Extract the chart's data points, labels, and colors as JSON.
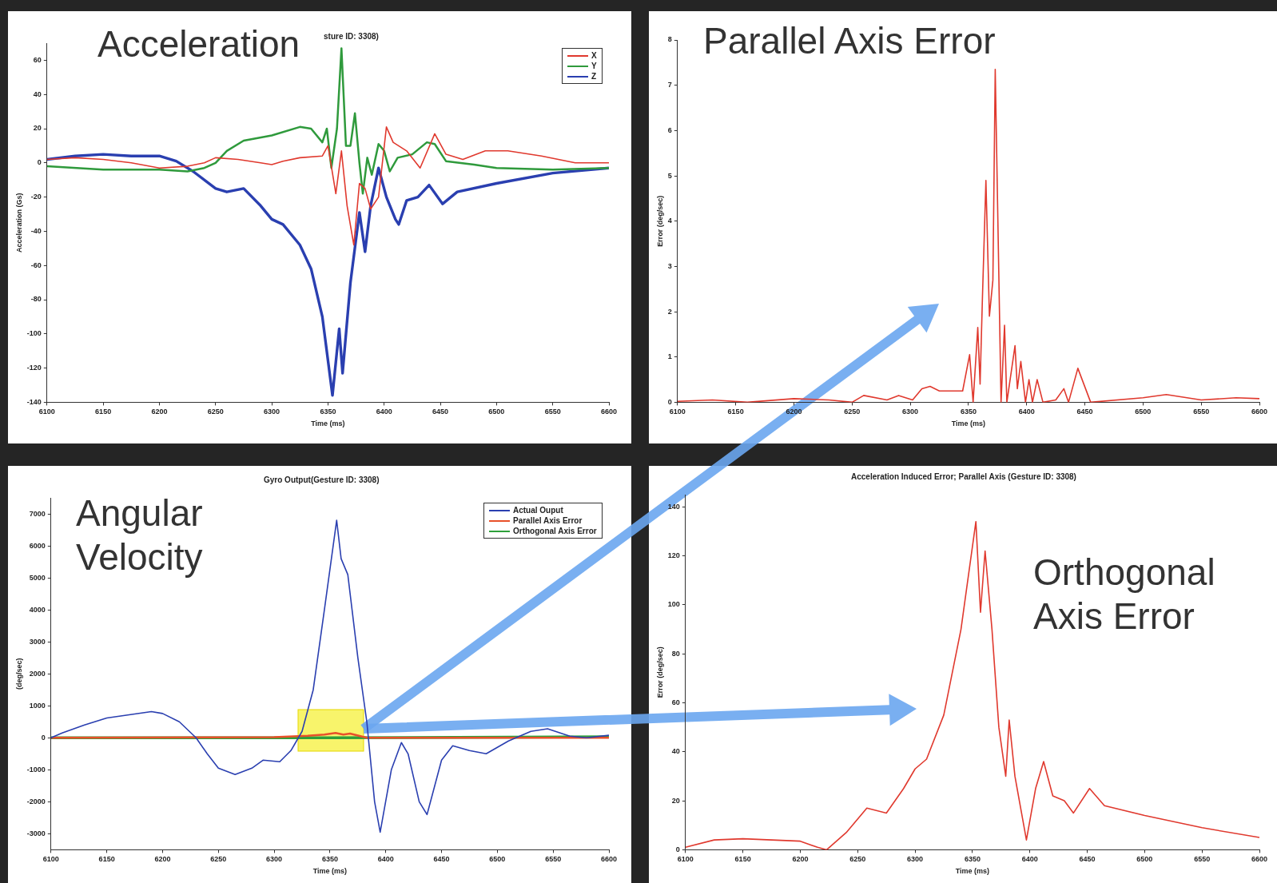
{
  "chart_data": [
    {
      "type": "line",
      "title": "Acceleration",
      "subtitle": "sture ID: 3308)",
      "xlabel": "Time (ms)",
      "ylabel": "Acceleration (Gs)",
      "xlim": [
        6100,
        6600
      ],
      "xticks": [
        6100,
        6150,
        6200,
        6250,
        6300,
        6350,
        6400,
        6450,
        6500,
        6550,
        6600
      ],
      "ylim": [
        -140,
        70
      ],
      "yticks": [
        -140,
        -120,
        -100,
        -80,
        -60,
        -40,
        -20,
        0,
        20,
        40,
        60
      ],
      "grid": false,
      "legend": "top right",
      "marker": "none",
      "line_style": "solid",
      "series": [
        {
          "name": "X",
          "color": "#e0392e",
          "x": [
            6100,
            6125,
            6150,
            6175,
            6200,
            6225,
            6240,
            6250,
            6270,
            6290,
            6300,
            6310,
            6325,
            6345,
            6350,
            6357,
            6362,
            6367,
            6373,
            6378,
            6383,
            6388,
            6395,
            6402,
            6408,
            6420,
            6432,
            6445,
            6455,
            6470,
            6490,
            6510,
            6540,
            6570,
            6600
          ],
          "values": [
            2,
            3,
            2,
            0,
            -3,
            -2,
            0,
            3,
            2,
            0,
            -1,
            1,
            3,
            4,
            10,
            -18,
            7,
            -25,
            -48,
            -12,
            -15,
            -27,
            -20,
            21,
            12,
            7,
            -3,
            17,
            5,
            2,
            7,
            7,
            4,
            0,
            0
          ]
        },
        {
          "name": "Y",
          "color": "#2f9a3c",
          "x": [
            6100,
            6150,
            6200,
            6225,
            6240,
            6250,
            6260,
            6275,
            6300,
            6325,
            6335,
            6345,
            6349,
            6353,
            6358,
            6362,
            6366,
            6370,
            6374,
            6378,
            6381,
            6385,
            6389,
            6395,
            6400,
            6405,
            6412,
            6425,
            6438,
            6445,
            6455,
            6480,
            6500,
            6550,
            6600
          ],
          "values": [
            -2,
            -4,
            -4,
            -5,
            -3,
            0,
            7,
            13,
            16,
            21,
            20,
            12,
            20,
            -3,
            20,
            67,
            10,
            10,
            29,
            0,
            -18,
            3,
            -7,
            11,
            7,
            -5,
            3,
            5,
            12,
            11,
            1,
            -1,
            -3,
            -4,
            -3
          ]
        },
        {
          "name": "Z",
          "color": "#2a3fb0",
          "x": [
            6100,
            6125,
            6150,
            6175,
            6200,
            6215,
            6230,
            6250,
            6260,
            6275,
            6290,
            6300,
            6310,
            6325,
            6335,
            6345,
            6354,
            6360,
            6363,
            6370,
            6378,
            6383,
            6388,
            6395,
            6402,
            6410,
            6413,
            6420,
            6430,
            6440,
            6452,
            6465,
            6500,
            6550,
            6600
          ],
          "values": [
            2,
            4,
            5,
            4,
            4,
            1,
            -5,
            -15,
            -17,
            -15,
            -25,
            -33,
            -36,
            -48,
            -62,
            -90,
            -136,
            -97,
            -123,
            -70,
            -29,
            -52,
            -25,
            -3,
            -20,
            -33,
            -36,
            -22,
            -20,
            -13,
            -24,
            -17,
            -12,
            -6,
            -3
          ]
        }
      ]
    },
    {
      "type": "line",
      "title": "Parallel Axis Error",
      "xlabel": "Time (ms)",
      "ylabel": "Error (deg/sec)",
      "xlim": [
        6100,
        6600
      ],
      "xticks": [
        6100,
        6150,
        6200,
        6250,
        6300,
        6350,
        6400,
        6450,
        6500,
        6550,
        6600
      ],
      "ylim": [
        0,
        8
      ],
      "yticks": [
        0,
        1,
        2,
        3,
        4,
        5,
        6,
        7,
        8
      ],
      "grid": false,
      "marker": "none",
      "line_style": "solid",
      "series": [
        {
          "color": "#e0392e",
          "x": [
            6100,
            6130,
            6160,
            6200,
            6230,
            6250,
            6260,
            6280,
            6290,
            6302,
            6310,
            6317,
            6325,
            6345,
            6351,
            6354,
            6358,
            6360,
            6362,
            6365,
            6368,
            6371,
            6373,
            6378,
            6381,
            6383,
            6390,
            6392,
            6395,
            6399,
            6402,
            6405,
            6409,
            6414,
            6425,
            6432,
            6436,
            6444,
            6455,
            6500,
            6520,
            6550,
            6580,
            6600
          ],
          "values": [
            0.02,
            0.05,
            0,
            0.08,
            0.05,
            0,
            0.15,
            0.05,
            0.15,
            0.05,
            0.3,
            0.35,
            0.25,
            0.25,
            1.05,
            0,
            1.65,
            0.4,
            2.3,
            4.9,
            1.9,
            2.7,
            7.35,
            0,
            1.7,
            0,
            1.25,
            0.3,
            0.9,
            0,
            0.5,
            0,
            0.5,
            0,
            0.05,
            0.3,
            0,
            0.75,
            0,
            0.1,
            0.17,
            0.05,
            0.1,
            0.08
          ]
        }
      ]
    },
    {
      "type": "line",
      "title": "Angular Velocity",
      "subtitle": "Gyro Output(Gesture ID: 3308)",
      "xlabel": "Time (ms)",
      "ylabel": "(deg/sec)",
      "xlim": [
        6100,
        6600
      ],
      "xticks": [
        6100,
        6150,
        6200,
        6250,
        6300,
        6350,
        6400,
        6450,
        6500,
        6550,
        6600
      ],
      "ylim": [
        -3500,
        7500
      ],
      "yticks": [
        -3000,
        -2000,
        -1000,
        0,
        1000,
        2000,
        3000,
        4000,
        5000,
        6000,
        7000
      ],
      "grid": false,
      "legend": "top right",
      "marker": "none",
      "line_style": "solid",
      "series": [
        {
          "name": "Actual Ouput",
          "color": "#2a3fb0",
          "x": [
            6100,
            6110,
            6130,
            6150,
            6170,
            6190,
            6200,
            6215,
            6230,
            6240,
            6250,
            6265,
            6280,
            6290,
            6305,
            6315,
            6325,
            6335,
            6345,
            6356,
            6360,
            6366,
            6375,
            6383,
            6390,
            6395,
            6405,
            6414,
            6420,
            6430,
            6437,
            6450,
            6460,
            6475,
            6490,
            6510,
            6530,
            6545,
            6565,
            6580,
            6600
          ],
          "values": [
            0,
            150,
            400,
            620,
            720,
            820,
            760,
            500,
            0,
            -500,
            -950,
            -1150,
            -950,
            -700,
            -750,
            -400,
            200,
            1500,
            4000,
            6800,
            5600,
            5100,
            2500,
            500,
            -2000,
            -2950,
            -1000,
            -150,
            -500,
            -2000,
            -2400,
            -700,
            -250,
            -400,
            -500,
            -100,
            200,
            280,
            50,
            0,
            80
          ]
        },
        {
          "name": "Parallel Axis Error",
          "color": "#e8502a",
          "x": [
            6100,
            6300,
            6330,
            6345,
            6355,
            6362,
            6368,
            6383,
            6600
          ],
          "values": [
            0,
            20,
            60,
            100,
            150,
            100,
            130,
            0,
            0
          ]
        },
        {
          "name": "Orthogonal Axis Error",
          "color": "#2ea03a",
          "x": [
            6100,
            6350,
            6600
          ],
          "values": [
            0,
            0,
            30
          ]
        }
      ]
    },
    {
      "type": "line",
      "title": "Orthogonal Axis Error",
      "subtitle": "Acceleration Induced Error; Parallel Axis (Gesture ID: 3308)",
      "xlabel": "Time (ms)",
      "ylabel": "Error (deg/sec)",
      "xlim": [
        6100,
        6600
      ],
      "xticks": [
        6100,
        6150,
        6200,
        6250,
        6300,
        6350,
        6400,
        6450,
        6500,
        6550,
        6600
      ],
      "ylim": [
        0,
        145
      ],
      "yticks": [
        0,
        20,
        40,
        60,
        80,
        100,
        120,
        140
      ],
      "grid": false,
      "marker": "none",
      "line_style": "solid",
      "series": [
        {
          "color": "#e0392e",
          "x": [
            6100,
            6125,
            6150,
            6175,
            6200,
            6215,
            6223,
            6240,
            6258,
            6275,
            6290,
            6300,
            6310,
            6325,
            6340,
            6353,
            6357,
            6361,
            6367,
            6373,
            6379,
            6382,
            6387,
            6397,
            6405,
            6412,
            6420,
            6430,
            6438,
            6452,
            6465,
            6500,
            6550,
            6600
          ],
          "values": [
            1,
            4,
            4.5,
            4,
            3.5,
            1,
            0,
            7,
            17,
            15,
            25,
            33,
            37,
            55,
            90,
            134,
            97,
            122,
            90,
            50,
            30,
            53,
            30,
            4,
            25,
            36,
            22,
            20,
            15,
            25,
            18,
            14,
            9,
            5
          ]
        }
      ]
    }
  ]
}
